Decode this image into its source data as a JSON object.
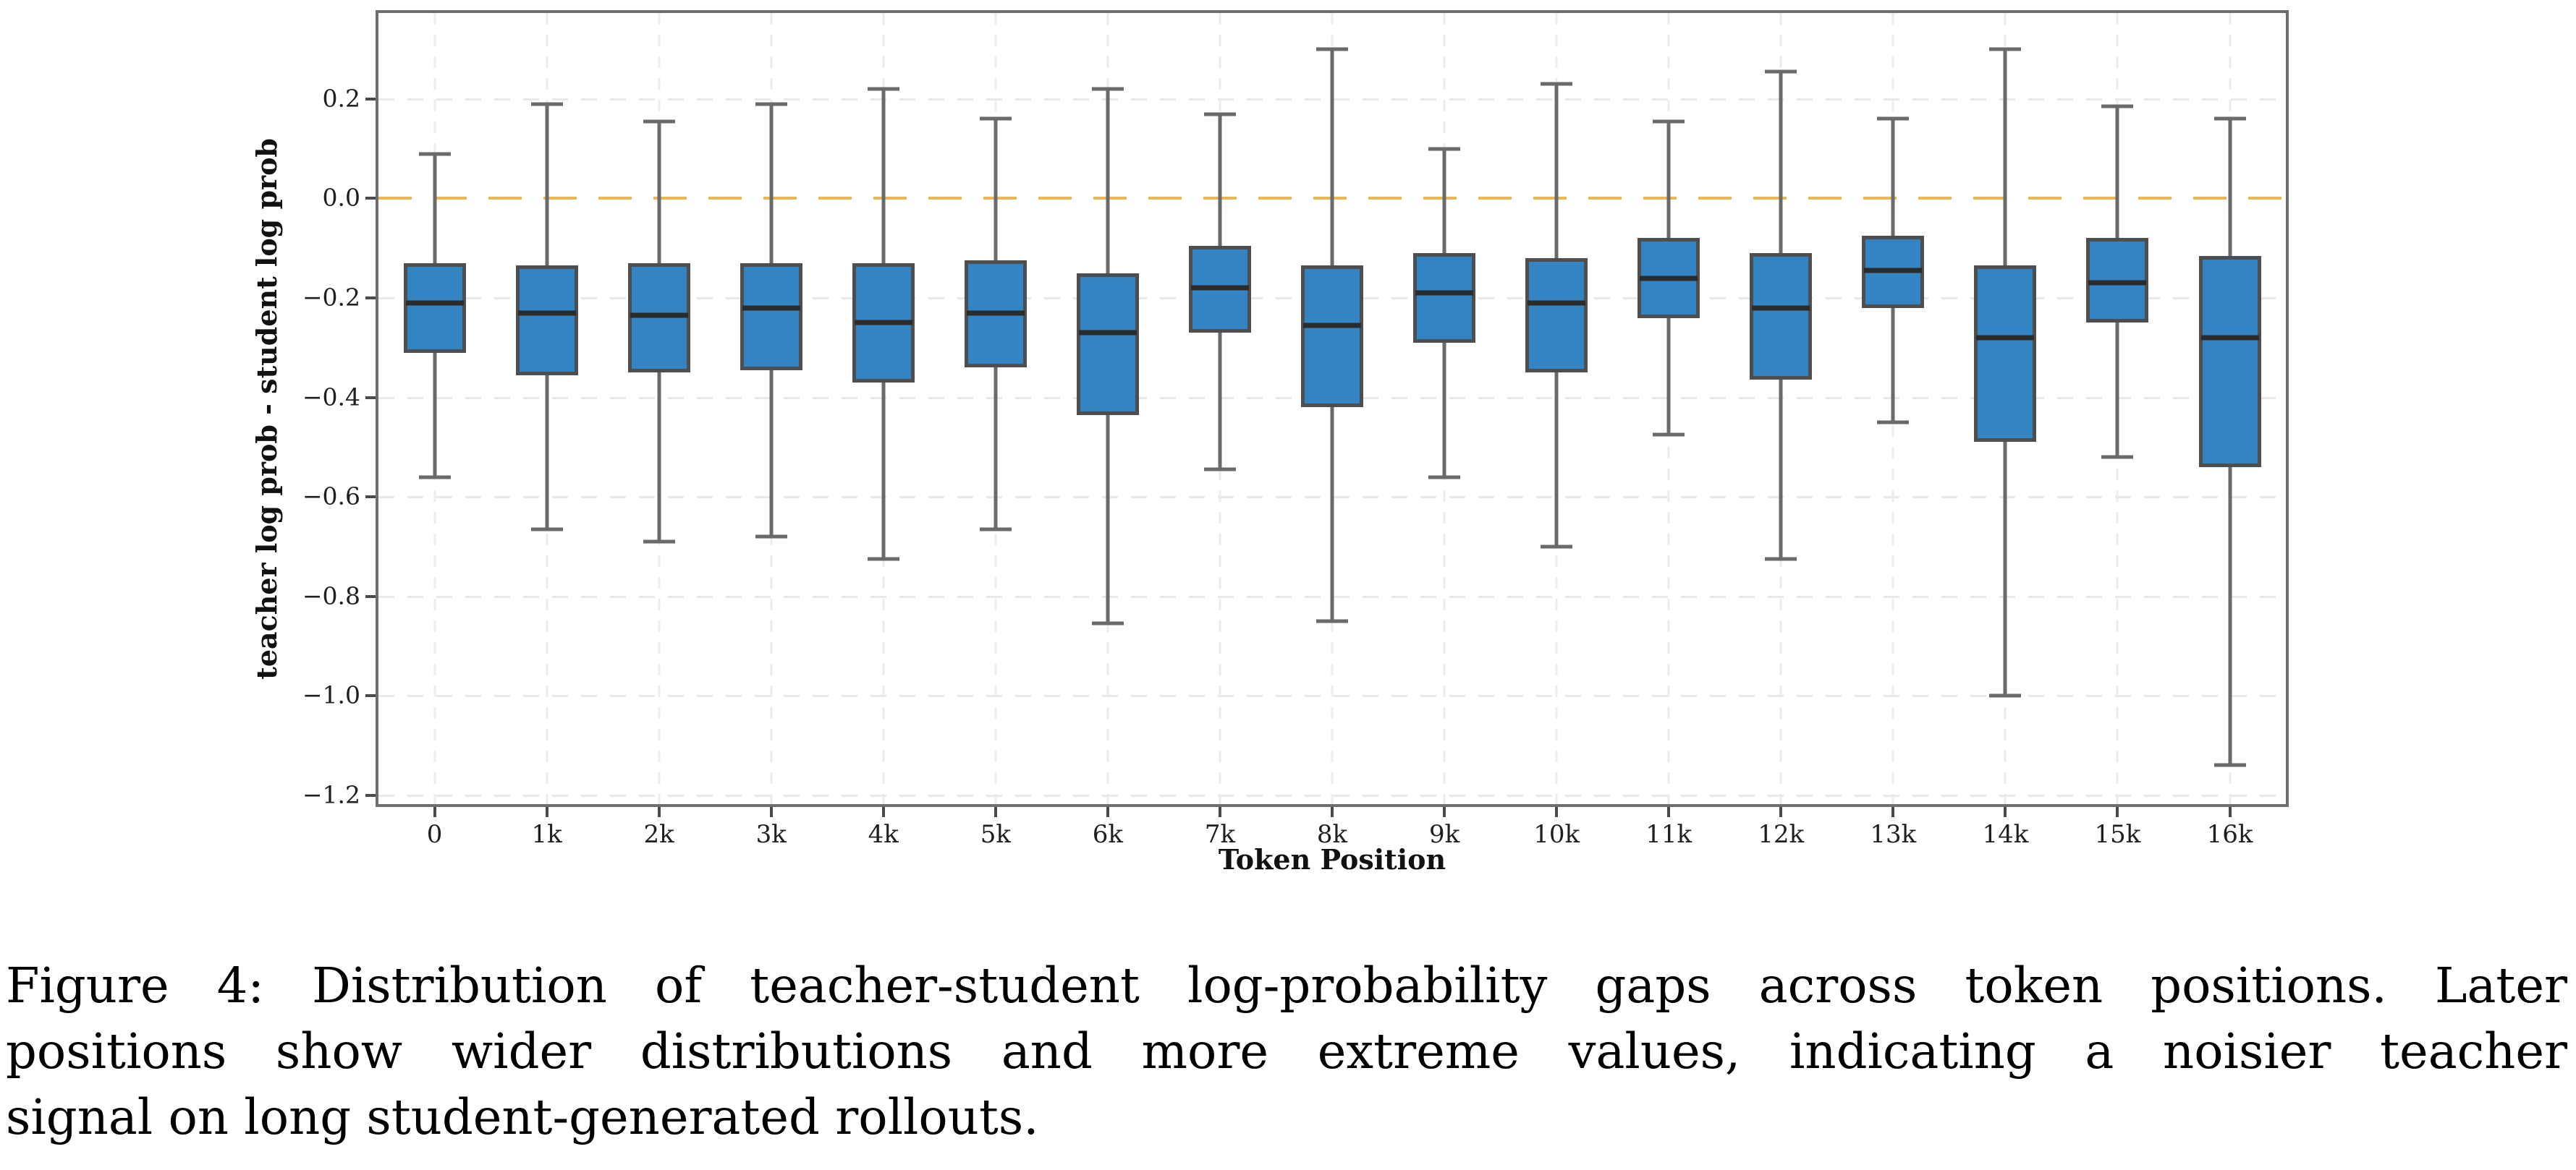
{
  "figure": {
    "caption_lines": [
      "Figure 4: Distribution of teacher-student log-probability gaps across token positions. Later",
      "positions show wider distributions and more extreme values, indicating a noisier teacher",
      "signal on long student-generated rollouts."
    ]
  },
  "colors": {
    "box_fill": "#3384c2",
    "box_edge": "#4e4e4e",
    "median": "#2b2b2b",
    "whisker": "#6a6a6a",
    "spine": "#6e6e6e",
    "grid": "#e9e9e9",
    "zero_line": "#ecb654",
    "text": "#1f1f1f"
  },
  "chart_data": {
    "type": "boxplot",
    "title": "",
    "xlabel": "Token Position",
    "ylabel": "teacher log prob - student log prob",
    "grid": true,
    "legend": null,
    "ylim": [
      -1.218,
      0.373
    ],
    "zero_line_y": 0.0,
    "yticks": [
      {
        "v": 0.2,
        "label": "0.2"
      },
      {
        "v": 0.0,
        "label": "0.0"
      },
      {
        "v": -0.2,
        "label": "−0.2"
      },
      {
        "v": -0.4,
        "label": "−0.4"
      },
      {
        "v": -0.6,
        "label": "−0.6"
      },
      {
        "v": -0.8,
        "label": "−0.8"
      },
      {
        "v": -1.0,
        "label": "−1.0"
      },
      {
        "v": -1.2,
        "label": "−1.2"
      }
    ],
    "categories": [
      "0",
      "1k",
      "2k",
      "3k",
      "4k",
      "5k",
      "6k",
      "7k",
      "8k",
      "9k",
      "10k",
      "11k",
      "12k",
      "13k",
      "14k",
      "15k",
      "16k"
    ],
    "boxes": [
      {
        "category": "0",
        "whisker_low": -0.56,
        "q1": -0.31,
        "median": -0.21,
        "q3": -0.13,
        "whisker_high": 0.09
      },
      {
        "category": "1k",
        "whisker_low": -0.665,
        "q1": -0.355,
        "median": -0.23,
        "q3": -0.135,
        "whisker_high": 0.19
      },
      {
        "category": "2k",
        "whisker_low": -0.69,
        "q1": -0.35,
        "median": -0.235,
        "q3": -0.13,
        "whisker_high": 0.155
      },
      {
        "category": "3k",
        "whisker_low": -0.68,
        "q1": -0.345,
        "median": -0.22,
        "q3": -0.13,
        "whisker_high": 0.19
      },
      {
        "category": "4k",
        "whisker_low": -0.725,
        "q1": -0.37,
        "median": -0.25,
        "q3": -0.13,
        "whisker_high": 0.22
      },
      {
        "category": "5k",
        "whisker_low": -0.665,
        "q1": -0.34,
        "median": -0.23,
        "q3": -0.125,
        "whisker_high": 0.16
      },
      {
        "category": "6k",
        "whisker_low": -0.855,
        "q1": -0.435,
        "median": -0.27,
        "q3": -0.15,
        "whisker_high": 0.22
      },
      {
        "category": "7k",
        "whisker_low": -0.545,
        "q1": -0.27,
        "median": -0.18,
        "q3": -0.095,
        "whisker_high": 0.17
      },
      {
        "category": "8k",
        "whisker_low": -0.85,
        "q1": -0.42,
        "median": -0.255,
        "q3": -0.135,
        "whisker_high": 0.3
      },
      {
        "category": "9k",
        "whisker_low": -0.56,
        "q1": -0.29,
        "median": -0.19,
        "q3": -0.11,
        "whisker_high": 0.1
      },
      {
        "category": "10k",
        "whisker_low": -0.7,
        "q1": -0.35,
        "median": -0.21,
        "q3": -0.12,
        "whisker_high": 0.23
      },
      {
        "category": "11k",
        "whisker_low": -0.475,
        "q1": -0.24,
        "median": -0.16,
        "q3": -0.08,
        "whisker_high": 0.155
      },
      {
        "category": "12k",
        "whisker_low": -0.725,
        "q1": -0.365,
        "median": -0.22,
        "q3": -0.11,
        "whisker_high": 0.255
      },
      {
        "category": "13k",
        "whisker_low": -0.45,
        "q1": -0.22,
        "median": -0.145,
        "q3": -0.075,
        "whisker_high": 0.16
      },
      {
        "category": "14k",
        "whisker_low": -1.0,
        "q1": -0.49,
        "median": -0.28,
        "q3": -0.135,
        "whisker_high": 0.3
      },
      {
        "category": "15k",
        "whisker_low": -0.52,
        "q1": -0.25,
        "median": -0.17,
        "q3": -0.08,
        "whisker_high": 0.185
      },
      {
        "category": "16k",
        "whisker_low": -1.14,
        "q1": -0.54,
        "median": -0.28,
        "q3": -0.115,
        "whisker_high": 0.16
      }
    ]
  }
}
